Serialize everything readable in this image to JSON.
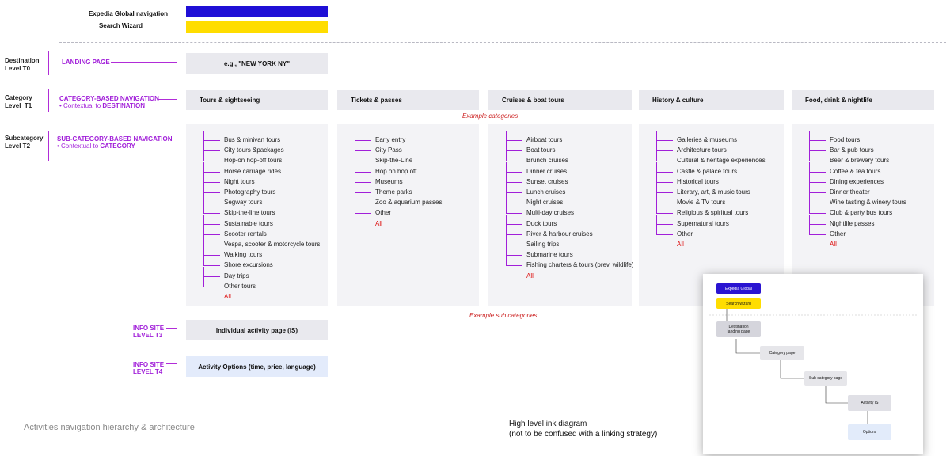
{
  "header": {
    "global_nav_label": "Expedia Global navigation",
    "search_wizard_label": "Search Wizard",
    "global_nav_color": "#1f0fd6",
    "search_wizard_color": "#ffdd00"
  },
  "levels": {
    "t0": {
      "level": "Destination\nLevel T0",
      "nav": "LANDING PAGE",
      "box": "e.g., \"NEW YORK NY\""
    },
    "t1": {
      "level": "Category\nLevel  T1",
      "nav": "CATEGORY-BASED  NAVIGATION",
      "sub_prefix": "• Contextual to ",
      "sub_bold": "DESTINATION"
    },
    "t2": {
      "level": "Subcategory\nLevel T2",
      "nav": "SUB-CATEGORY-BASED NAVIGATION",
      "sub_prefix": "• Contextual to ",
      "sub_bold": "CATEGORY"
    },
    "t3": {
      "nav": "INFO SITE\nLEVEL T3",
      "box": "Individual activity page (IS)"
    },
    "t4": {
      "nav": "INFO SITE\nLEVEL T4",
      "box": "Activity Options (time, price, language)"
    }
  },
  "categories": [
    {
      "name": "Tours & sightseeing",
      "subs": [
        "Bus & minivan tours",
        "City tours &packages",
        "Hop-on hop-off tours",
        "Horse carriage rides",
        "Night tours",
        "Photography tours",
        "Segway tours",
        "Skip-the-line tours",
        "Sustainable tours",
        "Scooter rentals",
        "Vespa, scooter & motorcycle tours",
        "Walking tours",
        "Shore excursions",
        "Day trips",
        "Other tours"
      ]
    },
    {
      "name": "Tickets & passes",
      "subs": [
        "Early entry",
        "City Pass",
        "Skip-the-Line",
        "Hop on hop off",
        "Museums",
        "Theme parks",
        "Zoo & aquarium passes",
        "Other"
      ]
    },
    {
      "name": "Cruises & boat tours",
      "subs": [
        "Airboat tours",
        "Boat tours",
        "Brunch cruises",
        "Dinner cruises",
        "Sunset cruises",
        "Lunch cruises",
        "Night cruises",
        "Multi-day cruises",
        "Duck tours",
        "River & harbour cruises",
        "Sailing trips",
        "Submarine tours",
        "Fishing charters & tours (prev. wildlife)"
      ]
    },
    {
      "name": "History & culture",
      "subs": [
        "Galleries & museums",
        "Architecture tours",
        "Cultural & heritage experiences",
        "Castle & palace tours",
        "Historical tours",
        "Literary, art, & music tours",
        "Movie & TV tours",
        "Religious & spiritual tours",
        "Supernatural tours",
        "Other"
      ]
    },
    {
      "name": "Food, drink & nightlife",
      "subs": [
        "Food tours",
        "Bar & pub tours",
        "Beer & brewery tours",
        "Coffee & tea tours",
        "Dining experiences",
        "Dinner theater",
        "Wine tasting & winery tours",
        "Club & party bus tours",
        "Nightlife passes",
        "Other"
      ]
    }
  ],
  "all_label": "All",
  "example_categories": "Example categories",
  "example_sub_categories": "Example sub categories",
  "caption": "Activities navigation hierarchy & architecture",
  "ink_caption_line1": "High level ink diagram",
  "ink_caption_line2": "(not to be confused with a linking strategy)",
  "mini": {
    "global": "Expedia Global",
    "search": "Search wizard",
    "landing": "Destination\nlanding page",
    "category": "Category page",
    "subcategory": "Sub category page",
    "activity": "Activity IS",
    "options": "Options"
  }
}
